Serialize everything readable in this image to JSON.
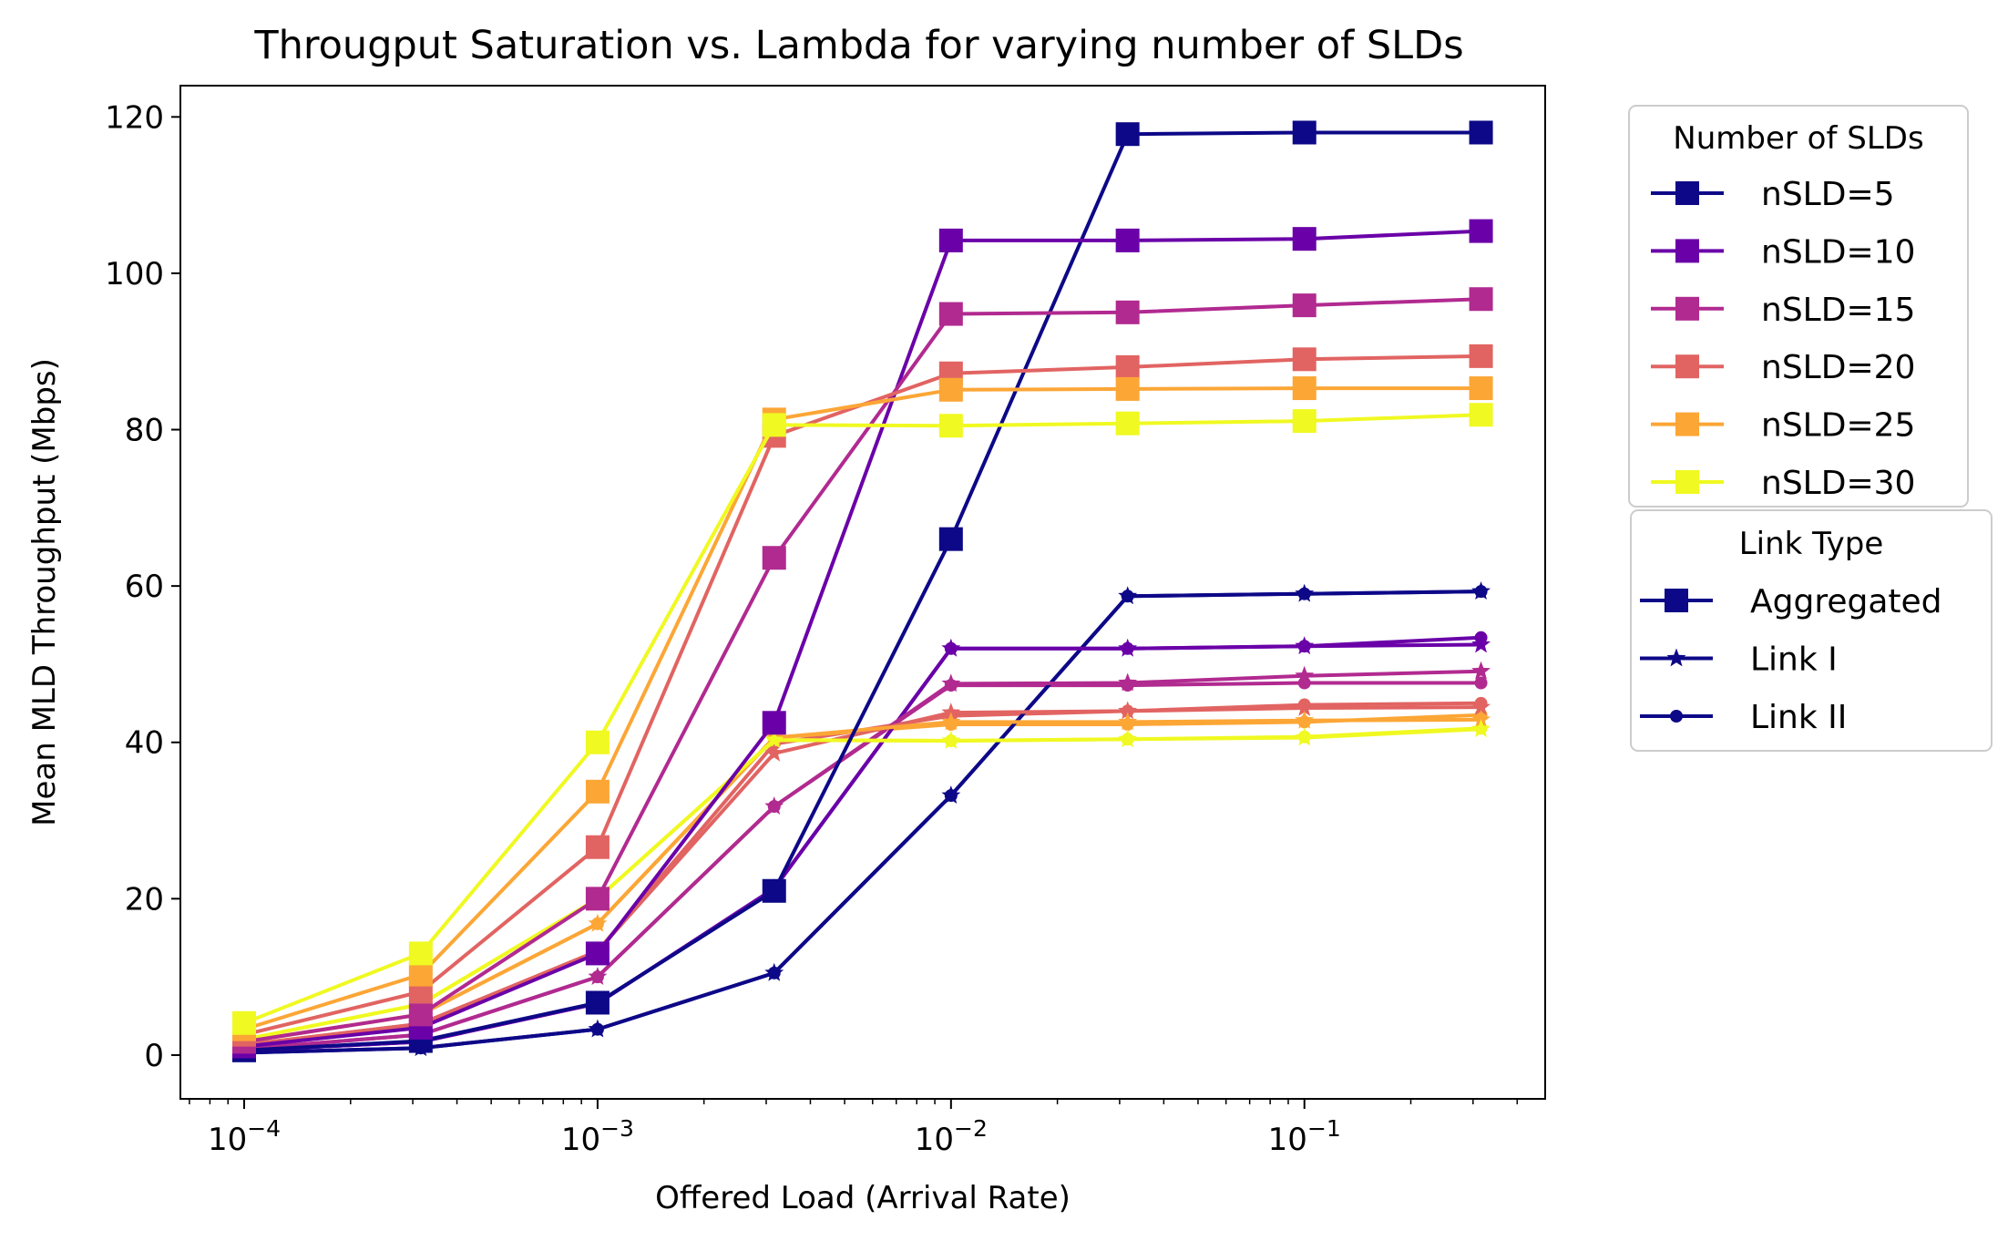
{
  "chart_data": {
    "type": "line",
    "title": "Througput Saturation vs. Lambda for varying number of SLDs",
    "xlabel": "Offered Load (Arrival Rate)",
    "ylabel": "Mean MLD Throughput (Mbps)",
    "xscale": "log",
    "xlim": [
      6.6e-05,
      0.48
    ],
    "ylim": [
      -5.6,
      124
    ],
    "x": [
      0.0001,
      0.000316,
      0.001,
      0.00316,
      0.01,
      0.0316,
      0.1,
      0.316
    ],
    "x_ticks": [
      {
        "value": 0.0001,
        "base": "10",
        "exp": "−4"
      },
      {
        "value": 0.001,
        "base": "10",
        "exp": "−3"
      },
      {
        "value": 0.01,
        "base": "10",
        "exp": "−2"
      },
      {
        "value": 0.1,
        "base": "10",
        "exp": "−1"
      }
    ],
    "y_ticks": [
      0,
      20,
      40,
      60,
      80,
      100,
      120
    ],
    "grid": false,
    "legend_sld": {
      "title": "Number of SLDs",
      "placement": "outside-right-top",
      "entries": [
        "nSLD=5",
        "nSLD=10",
        "nSLD=15",
        "nSLD=20",
        "nSLD=25",
        "nSLD=30"
      ]
    },
    "legend_link": {
      "title": "Link Type",
      "placement": "outside-right",
      "entries": [
        {
          "label": "Aggregated",
          "marker": "square"
        },
        {
          "label": "Link I",
          "marker": "star"
        },
        {
          "label": "Link II",
          "marker": "circle"
        }
      ]
    },
    "series": [
      {
        "name": "nSLD=5",
        "color": "#0d0887",
        "aggregated": [
          0.6,
          1.8,
          6.7,
          21,
          66,
          117.8,
          118,
          118
        ],
        "link1": [
          0.3,
          0.9,
          3.3,
          10.5,
          33.2,
          58.7,
          59,
          59.3
        ],
        "link2": [
          0.3,
          0.9,
          3.3,
          10.5,
          33.2,
          58.7,
          59,
          59.3
        ]
      },
      {
        "name": "nSLD=10",
        "color": "#6a00a8",
        "aggregated": [
          1.1,
          3.5,
          13,
          42.5,
          104.2,
          104.2,
          104.4,
          105.4
        ],
        "link1": [
          0.6,
          1.7,
          6.6,
          21.3,
          52,
          52,
          52.3,
          52.5
        ],
        "link2": [
          0.6,
          1.7,
          6.6,
          21.3,
          52,
          52,
          52.3,
          53.4
        ]
      },
      {
        "name": "nSLD=15",
        "color": "#b12a90",
        "aggregated": [
          1.7,
          5.2,
          20,
          63.6,
          94.8,
          95,
          95.9,
          96.7
        ],
        "link1": [
          0.8,
          2.6,
          10,
          31.8,
          47.5,
          47.6,
          48.5,
          49.1
        ],
        "link2": [
          0.8,
          2.6,
          10,
          31.8,
          47.3,
          47.3,
          47.6,
          47.6
        ]
      },
      {
        "name": "nSLD=20",
        "color": "#e16462",
        "aggregated": [
          2.6,
          8.1,
          26.6,
          79.2,
          87.2,
          88,
          89,
          89.4
        ],
        "link1": [
          1.3,
          4,
          13.3,
          38.6,
          43.8,
          44,
          44.4,
          44.5
        ],
        "link2": [
          1.3,
          4,
          13.3,
          39.8,
          43.4,
          44,
          44.8,
          45
        ]
      },
      {
        "name": "nSLD=25",
        "color": "#fca636",
        "aggregated": [
          3.3,
          10.3,
          33.7,
          81.3,
          85.1,
          85.2,
          85.3,
          85.3
        ],
        "link1": [
          1.7,
          5.2,
          16.8,
          40.6,
          42.6,
          42.6,
          42.8,
          42.9
        ],
        "link2": [
          1.7,
          5.2,
          16.8,
          40.6,
          42.3,
          42.3,
          42.6,
          43.5
        ]
      },
      {
        "name": "nSLD=30",
        "color": "#f0f921",
        "aggregated": [
          4.1,
          13,
          40,
          80.6,
          80.5,
          80.8,
          81.1,
          81.9
        ],
        "link1": [
          2,
          6.5,
          20,
          40.3,
          40.2,
          40.4,
          40.6,
          41.7
        ],
        "link2": [
          2,
          6.5,
          20,
          40.3,
          40.2,
          40.4,
          40.7,
          41.8
        ]
      }
    ]
  }
}
